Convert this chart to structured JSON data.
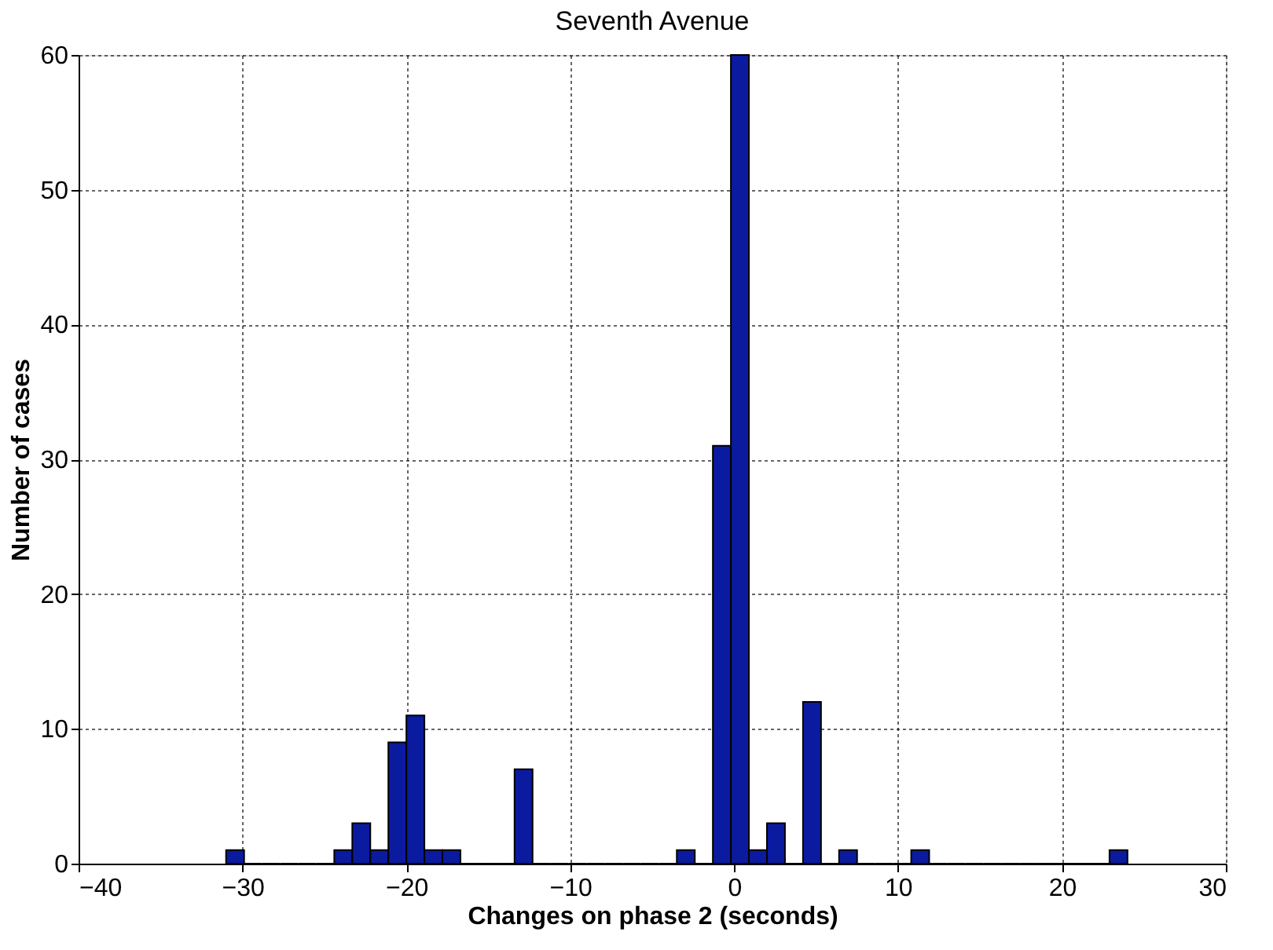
{
  "chart_data": {
    "type": "histogram",
    "title": "Seventh Avenue",
    "xlabel": "Changes on phase 2 (seconds)",
    "ylabel": "Number of cases",
    "bins": [
      -31,
      -29.9,
      -28.8,
      -27.7,
      -26.6,
      -25.5,
      -24.4,
      -23.3,
      -22.2,
      -21.1,
      -20,
      -18.9,
      -17.8,
      -16.7,
      -15.6,
      -14.5,
      -13.4,
      -12.3,
      -11.2,
      -10.1,
      -9,
      -7.9,
      -6.8,
      -5.7,
      -4.6,
      -3.5,
      -2.4,
      -1.3,
      -0.2,
      0.9,
      2,
      3.1,
      4.2,
      5.3,
      6.4,
      7.5,
      8.6,
      9.7,
      10.8,
      11.9,
      13,
      14.1,
      15.2,
      16.3,
      17.4,
      18.5,
      19.6,
      20.7,
      21.8,
      22.9,
      24
    ],
    "values": [
      1,
      0,
      0,
      0,
      0,
      0,
      1,
      3,
      1,
      9,
      11,
      1,
      1,
      0,
      0,
      0,
      7,
      0,
      0,
      0,
      0,
      0,
      0,
      0,
      0,
      1,
      0,
      31,
      60,
      1,
      3,
      0,
      12,
      0,
      1,
      0,
      0,
      0,
      1,
      0,
      0,
      0,
      0,
      0,
      0,
      0,
      0,
      0,
      0,
      1
    ],
    "color": "#0a1ba0",
    "xlim": [
      -40,
      30
    ],
    "xticks": [
      -40,
      -30,
      -20,
      -10,
      0,
      10,
      20,
      30
    ],
    "ylim": [
      0,
      60
    ],
    "yticks": [
      0,
      10,
      20,
      30,
      40,
      50,
      60
    ],
    "grid": true
  }
}
